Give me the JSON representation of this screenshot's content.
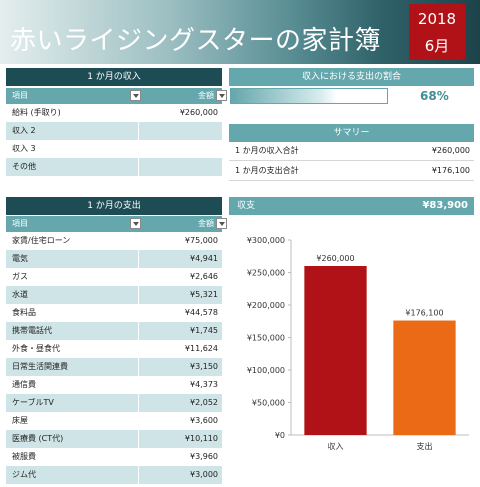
{
  "header": {
    "title": "赤いライジングスターの家計簿",
    "year": "2018",
    "month": "6月"
  },
  "income": {
    "section_title": "1 か月の収入",
    "col_item": "項目",
    "col_amount": "金額",
    "rows": [
      {
        "item": "給料 (手取り)",
        "amount": "¥260,000"
      },
      {
        "item": "収入 2",
        "amount": ""
      },
      {
        "item": "収入 3",
        "amount": ""
      },
      {
        "item": "その他",
        "amount": ""
      }
    ]
  },
  "ratio": {
    "section_title": "収入における支出の割合",
    "percent_label": "68%",
    "percent_value": 68
  },
  "summary": {
    "section_title": "サマリー",
    "rows": [
      {
        "label": "1 か月の収入合計",
        "value": "¥260,000"
      },
      {
        "label": "1 か月の支出合計",
        "value": "¥176,100"
      }
    ]
  },
  "expenses": {
    "section_title": "1 か月の支出",
    "col_item": "項目",
    "col_amount": "金額",
    "rows": [
      {
        "item": "家賃/住宅ローン",
        "amount": "¥75,000"
      },
      {
        "item": "電気",
        "amount": "¥4,941"
      },
      {
        "item": "ガス",
        "amount": "¥2,646"
      },
      {
        "item": "水道",
        "amount": "¥5,321"
      },
      {
        "item": "食料品",
        "amount": "¥44,578"
      },
      {
        "item": "携帯電話代",
        "amount": "¥1,745"
      },
      {
        "item": "外食・昼食代",
        "amount": "¥11,624"
      },
      {
        "item": "日常生活関連費",
        "amount": "¥3,150"
      },
      {
        "item": "通信費",
        "amount": "¥4,373"
      },
      {
        "item": "ケーブルTV",
        "amount": "¥2,052"
      },
      {
        "item": "床屋",
        "amount": "¥3,600"
      },
      {
        "item": "医療費 (CT代)",
        "amount": "¥10,110"
      },
      {
        "item": "被服費",
        "amount": "¥3,960"
      },
      {
        "item": "ジム代",
        "amount": "¥3,000"
      }
    ]
  },
  "balance": {
    "label": "収支",
    "value": "¥83,900"
  },
  "chart_data": {
    "type": "bar",
    "categories": [
      "収入",
      "支出"
    ],
    "values": [
      260000,
      176100
    ],
    "data_labels": [
      "¥260,000",
      "¥176,100"
    ],
    "colors": [
      "#b01217",
      "#ea6a16"
    ],
    "yticks": [
      0,
      50000,
      100000,
      150000,
      200000,
      250000,
      300000
    ],
    "ytick_labels": [
      "¥0",
      "¥50,000",
      "¥100,000",
      "¥150,000",
      "¥200,000",
      "¥250,000",
      "¥300,000"
    ],
    "ylim": [
      0,
      300000
    ],
    "grid": false,
    "legend": "none"
  },
  "colors": {
    "dark_teal": "#1e4c54",
    "teal": "#64a7ac",
    "light_teal": "#cfe4e6",
    "accent_red": "#b01217",
    "accent_orange": "#ea6a16"
  },
  "icons": {
    "filter": "chevron-down-icon"
  }
}
